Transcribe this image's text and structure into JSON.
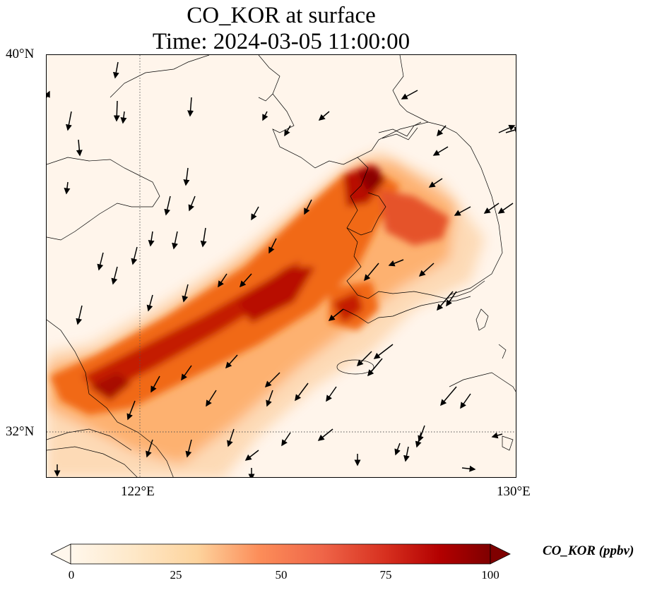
{
  "title": {
    "line1": "CO_KOR at surface",
    "line2": "Time: 2024-03-05 11:00:00"
  },
  "map": {
    "lat_ticks": [
      "40°N",
      "32°N"
    ],
    "lon_ticks": [
      "122°E",
      "130°E"
    ],
    "field": "CO_KOR",
    "colormap": "OrRd",
    "colors": {
      "c0": "#fff5eb",
      "c25": "#fdd0a2",
      "c50": "#f16913",
      "c75": "#c41a00",
      "c100": "#7f0000"
    },
    "plume_notes": "high concentration band from Shanghai coast NE to Korean west coast",
    "wind_vectors": true
  },
  "colorbar": {
    "label": "CO_KOR (ppbv)",
    "ticks": [
      "0",
      "25",
      "50",
      "75",
      "100"
    ],
    "min": 0,
    "max": 100,
    "extend": "both"
  }
}
